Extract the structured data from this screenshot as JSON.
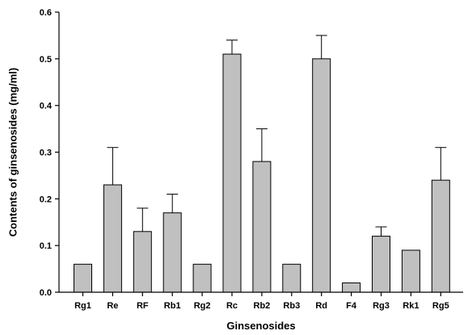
{
  "chart_data": {
    "type": "bar",
    "title": "",
    "xlabel": "Ginsenosides",
    "ylabel": "Contents of ginsenosides (mg/ml)",
    "ylim": [
      0,
      0.6
    ],
    "yticks": [
      "0.0",
      "0.1",
      "0.2",
      "0.3",
      "0.4",
      "0.5",
      "0.6"
    ],
    "grid": false,
    "categories": [
      "Rg1",
      "Re",
      "RF",
      "Rb1",
      "Rg2",
      "Rc",
      "Rb2",
      "Rb3",
      "Rd",
      "F4",
      "Rg3",
      "Rk1",
      "Rg5"
    ],
    "values": [
      0.06,
      0.23,
      0.13,
      0.17,
      0.06,
      0.51,
      0.28,
      0.06,
      0.5,
      0.02,
      0.12,
      0.09,
      0.24
    ],
    "errors": [
      0.0,
      0.08,
      0.05,
      0.04,
      0.0,
      0.03,
      0.07,
      0.0,
      0.05,
      0.0,
      0.02,
      0.0,
      0.07
    ],
    "bar_color": "#c0c0c0",
    "edge_color": "#000000"
  }
}
